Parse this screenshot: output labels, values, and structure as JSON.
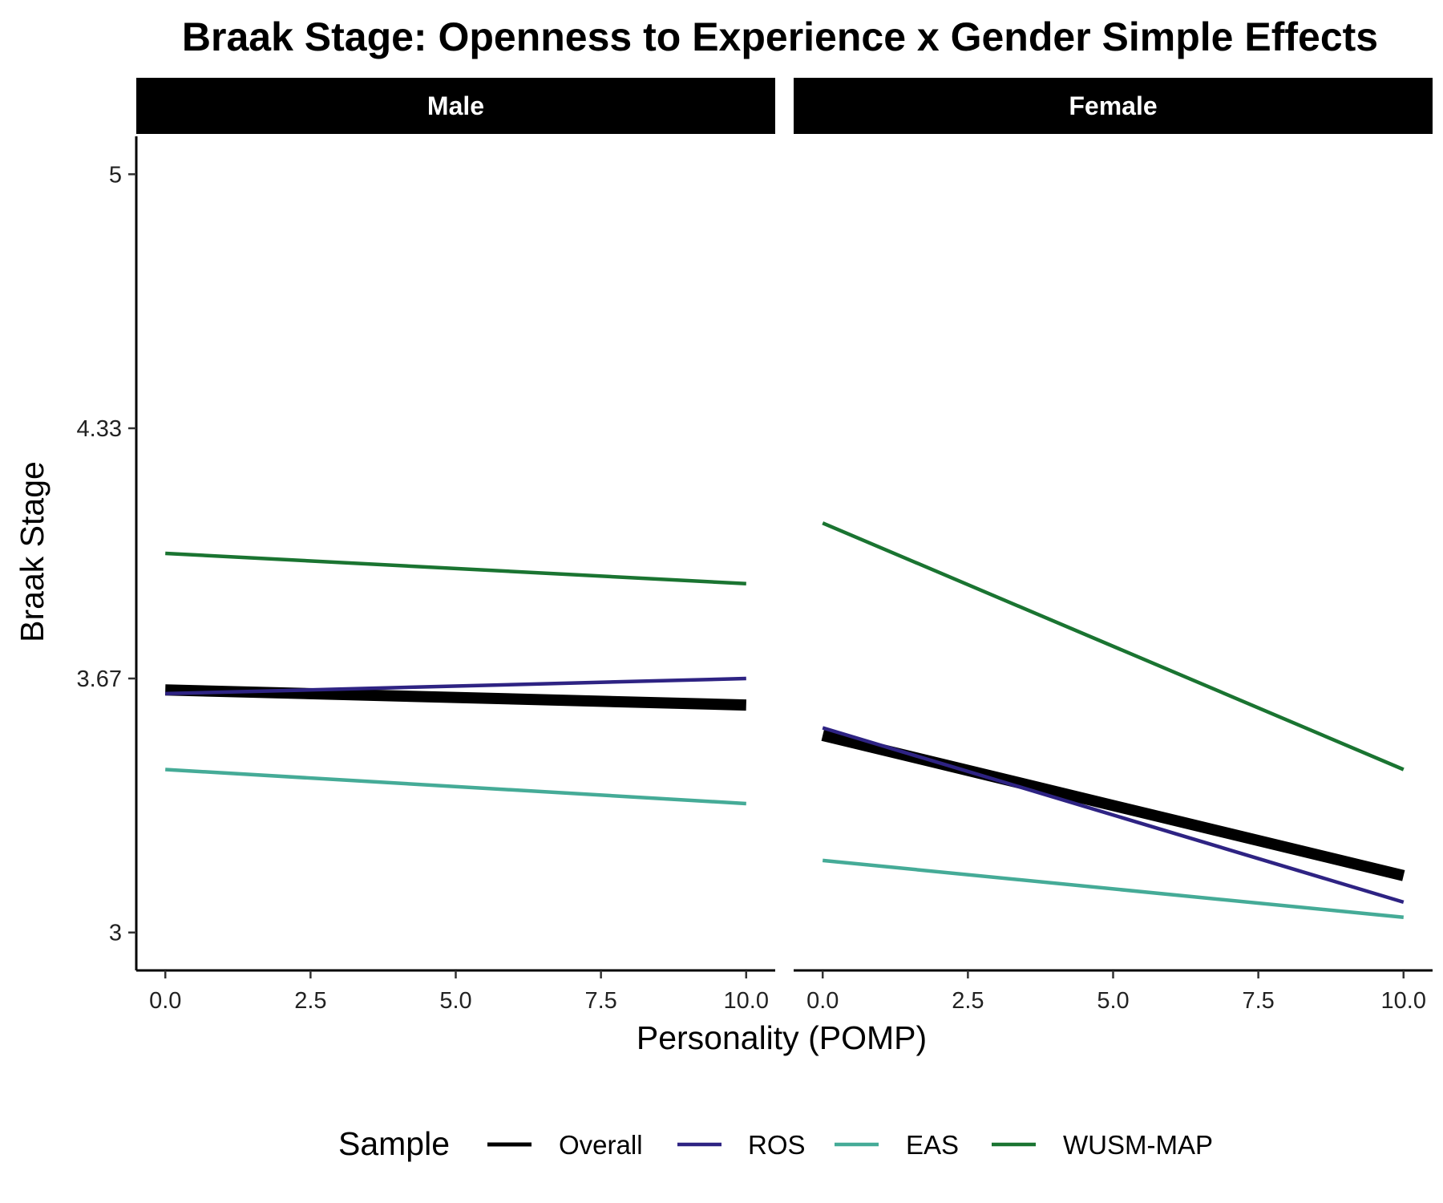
{
  "chart_data": {
    "type": "line",
    "title": "Braak Stage: Openness to Experience x Gender Simple Effects",
    "xlabel": "Personality (POMP)",
    "ylabel": "Braak Stage",
    "xlim": [
      -0.5,
      10.5
    ],
    "ylim": [
      2.9,
      5.1
    ],
    "x_ticks": [
      0,
      2.5,
      5,
      7.5,
      10
    ],
    "x_tick_labels": [
      "0.0",
      "2.5",
      "5.0",
      "7.5",
      "10.0"
    ],
    "y_ticks": [
      3,
      3.67,
      4.33,
      5
    ],
    "y_tick_labels": [
      "3",
      "3.67",
      "4.33",
      "5"
    ],
    "legend": {
      "title": "Sample",
      "position": "bottom"
    },
    "grid": false,
    "series_meta": [
      {
        "name": "Overall",
        "color": "#000000",
        "width": 14
      },
      {
        "name": "ROS",
        "color": "#2e2383",
        "width": 4.5
      },
      {
        "name": "EAS",
        "color": "#45ab97",
        "width": 4.5
      },
      {
        "name": "WUSM-MAP",
        "color": "#1a7431",
        "width": 4.5
      }
    ],
    "panels": [
      {
        "label": "Male",
        "series": [
          {
            "name": "Overall",
            "x": [
              0,
              10
            ],
            "y": [
              3.64,
              3.6
            ]
          },
          {
            "name": "ROS",
            "x": [
              0,
              10
            ],
            "y": [
              3.63,
              3.67
            ]
          },
          {
            "name": "EAS",
            "x": [
              0,
              10
            ],
            "y": [
              3.43,
              3.34
            ]
          },
          {
            "name": "WUSM-MAP",
            "x": [
              0,
              10
            ],
            "y": [
              4.0,
              3.92
            ]
          }
        ]
      },
      {
        "label": "Female",
        "series": [
          {
            "name": "Overall",
            "x": [
              0,
              10
            ],
            "y": [
              3.52,
              3.15
            ]
          },
          {
            "name": "ROS",
            "x": [
              0,
              10
            ],
            "y": [
              3.54,
              3.08
            ]
          },
          {
            "name": "EAS",
            "x": [
              0,
              10
            ],
            "y": [
              3.19,
              3.04
            ]
          },
          {
            "name": "WUSM-MAP",
            "x": [
              0,
              10
            ],
            "y": [
              4.08,
              3.43
            ]
          }
        ]
      }
    ]
  }
}
